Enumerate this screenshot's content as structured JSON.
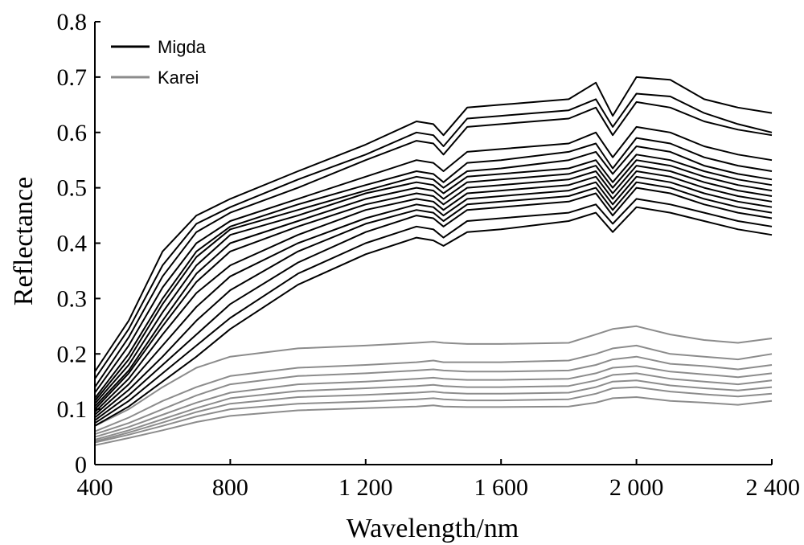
{
  "chart_data": {
    "type": "line",
    "title": "",
    "xlabel": "Wavelength/nm",
    "ylabel": "Reflectance",
    "xlim": [
      400,
      2400
    ],
    "ylim": [
      0,
      0.8
    ],
    "x_ticks": [
      400,
      800,
      1200,
      1600,
      2000,
      2400
    ],
    "x_tick_labels": [
      "400",
      "800",
      "1 200",
      "1 600",
      "2 000",
      "2 400"
    ],
    "y_ticks": [
      0,
      0.1,
      0.2,
      0.3,
      0.4,
      0.5,
      0.6,
      0.7,
      0.8
    ],
    "y_tick_labels": [
      "0",
      "0.1",
      "0.2",
      "0.3",
      "0.4",
      "0.5",
      "0.6",
      "0.7",
      "0.8"
    ],
    "grid": false,
    "legend": {
      "position": "top-left",
      "entries": [
        {
          "name": "Migda",
          "color": "#000000"
        },
        {
          "name": "Karei",
          "color": "#8c8c8c"
        }
      ]
    },
    "x": [
      400,
      500,
      600,
      700,
      800,
      1000,
      1200,
      1350,
      1400,
      1430,
      1500,
      1600,
      1800,
      1880,
      1930,
      2000,
      2100,
      2200,
      2300,
      2400
    ],
    "series": [
      {
        "group": "Migda",
        "values": [
          0.168,
          0.26,
          0.385,
          0.45,
          0.48,
          0.53,
          0.578,
          0.62,
          0.615,
          0.595,
          0.645,
          0.65,
          0.66,
          0.69,
          0.63,
          0.7,
          0.695,
          0.66,
          0.645,
          0.635
        ]
      },
      {
        "group": "Migda",
        "values": [
          0.155,
          0.245,
          0.36,
          0.435,
          0.465,
          0.515,
          0.56,
          0.6,
          0.595,
          0.575,
          0.625,
          0.63,
          0.64,
          0.66,
          0.61,
          0.67,
          0.665,
          0.635,
          0.615,
          0.6
        ]
      },
      {
        "group": "Migda",
        "values": [
          0.14,
          0.23,
          0.34,
          0.42,
          0.455,
          0.5,
          0.55,
          0.585,
          0.58,
          0.56,
          0.61,
          0.615,
          0.625,
          0.645,
          0.595,
          0.655,
          0.645,
          0.62,
          0.605,
          0.595
        ]
      },
      {
        "group": "Migda",
        "values": [
          0.13,
          0.215,
          0.32,
          0.4,
          0.44,
          0.48,
          0.52,
          0.55,
          0.545,
          0.53,
          0.565,
          0.57,
          0.58,
          0.6,
          0.555,
          0.61,
          0.6,
          0.575,
          0.56,
          0.55
        ]
      },
      {
        "group": "Migda",
        "values": [
          0.12,
          0.2,
          0.3,
          0.385,
          0.43,
          0.47,
          0.505,
          0.53,
          0.525,
          0.51,
          0.545,
          0.55,
          0.565,
          0.58,
          0.535,
          0.59,
          0.58,
          0.555,
          0.54,
          0.53
        ]
      },
      {
        "group": "Migda",
        "values": [
          0.115,
          0.19,
          0.29,
          0.375,
          0.425,
          0.46,
          0.495,
          0.52,
          0.515,
          0.5,
          0.53,
          0.535,
          0.55,
          0.565,
          0.525,
          0.575,
          0.565,
          0.54,
          0.525,
          0.515
        ]
      },
      {
        "group": "Migda",
        "values": [
          0.11,
          0.18,
          0.275,
          0.36,
          0.415,
          0.45,
          0.49,
          0.51,
          0.505,
          0.49,
          0.52,
          0.525,
          0.535,
          0.55,
          0.51,
          0.56,
          0.55,
          0.53,
          0.515,
          0.505
        ]
      },
      {
        "group": "Migda",
        "values": [
          0.105,
          0.17,
          0.26,
          0.345,
          0.4,
          0.44,
          0.48,
          0.5,
          0.495,
          0.48,
          0.51,
          0.515,
          0.525,
          0.54,
          0.5,
          0.55,
          0.54,
          0.52,
          0.505,
          0.495
        ]
      },
      {
        "group": "Migda",
        "values": [
          0.1,
          0.165,
          0.25,
          0.33,
          0.385,
          0.43,
          0.47,
          0.49,
          0.485,
          0.47,
          0.5,
          0.505,
          0.515,
          0.53,
          0.49,
          0.54,
          0.53,
          0.51,
          0.495,
          0.485
        ]
      },
      {
        "group": "Migda",
        "values": [
          0.095,
          0.155,
          0.235,
          0.31,
          0.36,
          0.415,
          0.46,
          0.48,
          0.475,
          0.46,
          0.49,
          0.495,
          0.505,
          0.52,
          0.48,
          0.53,
          0.52,
          0.5,
          0.485,
          0.475
        ]
      },
      {
        "group": "Migda",
        "values": [
          0.09,
          0.145,
          0.215,
          0.285,
          0.34,
          0.4,
          0.445,
          0.47,
          0.465,
          0.45,
          0.48,
          0.485,
          0.495,
          0.51,
          0.47,
          0.52,
          0.51,
          0.49,
          0.475,
          0.465
        ]
      },
      {
        "group": "Migda",
        "values": [
          0.085,
          0.135,
          0.195,
          0.26,
          0.315,
          0.385,
          0.435,
          0.46,
          0.455,
          0.44,
          0.47,
          0.475,
          0.485,
          0.5,
          0.46,
          0.51,
          0.5,
          0.48,
          0.465,
          0.455
        ]
      },
      {
        "group": "Migda",
        "values": [
          0.08,
          0.125,
          0.18,
          0.235,
          0.29,
          0.365,
          0.42,
          0.45,
          0.445,
          0.43,
          0.46,
          0.465,
          0.475,
          0.49,
          0.45,
          0.5,
          0.49,
          0.47,
          0.455,
          0.445
        ]
      },
      {
        "group": "Migda",
        "values": [
          0.075,
          0.115,
          0.165,
          0.215,
          0.265,
          0.345,
          0.4,
          0.43,
          0.425,
          0.41,
          0.44,
          0.445,
          0.455,
          0.47,
          0.435,
          0.48,
          0.47,
          0.455,
          0.44,
          0.43
        ]
      },
      {
        "group": "Migda",
        "values": [
          0.07,
          0.105,
          0.15,
          0.195,
          0.245,
          0.325,
          0.38,
          0.41,
          0.405,
          0.395,
          0.42,
          0.425,
          0.44,
          0.455,
          0.42,
          0.465,
          0.455,
          0.44,
          0.425,
          0.415
        ]
      },
      {
        "group": "Karei",
        "values": [
          0.07,
          0.1,
          0.14,
          0.175,
          0.195,
          0.21,
          0.215,
          0.22,
          0.222,
          0.22,
          0.218,
          0.218,
          0.22,
          0.235,
          0.245,
          0.25,
          0.235,
          0.225,
          0.22,
          0.228
        ]
      },
      {
        "group": "Karei",
        "values": [
          0.06,
          0.085,
          0.115,
          0.14,
          0.16,
          0.175,
          0.18,
          0.185,
          0.188,
          0.185,
          0.185,
          0.185,
          0.188,
          0.2,
          0.21,
          0.215,
          0.2,
          0.195,
          0.19,
          0.2
        ]
      },
      {
        "group": "Karei",
        "values": [
          0.055,
          0.075,
          0.1,
          0.125,
          0.145,
          0.16,
          0.165,
          0.17,
          0.172,
          0.17,
          0.168,
          0.168,
          0.17,
          0.18,
          0.19,
          0.195,
          0.182,
          0.178,
          0.172,
          0.18
        ]
      },
      {
        "group": "Karei",
        "values": [
          0.05,
          0.068,
          0.09,
          0.112,
          0.13,
          0.145,
          0.15,
          0.155,
          0.157,
          0.155,
          0.153,
          0.153,
          0.155,
          0.165,
          0.175,
          0.178,
          0.168,
          0.163,
          0.158,
          0.165
        ]
      },
      {
        "group": "Karei",
        "values": [
          0.045,
          0.062,
          0.082,
          0.102,
          0.12,
          0.133,
          0.138,
          0.142,
          0.144,
          0.142,
          0.14,
          0.14,
          0.142,
          0.152,
          0.162,
          0.165,
          0.155,
          0.15,
          0.145,
          0.152
        ]
      },
      {
        "group": "Karei",
        "values": [
          0.042,
          0.058,
          0.076,
          0.095,
          0.11,
          0.122,
          0.126,
          0.13,
          0.132,
          0.13,
          0.128,
          0.128,
          0.13,
          0.14,
          0.15,
          0.152,
          0.143,
          0.138,
          0.134,
          0.14
        ]
      },
      {
        "group": "Karei",
        "values": [
          0.04,
          0.054,
          0.07,
          0.087,
          0.1,
          0.11,
          0.114,
          0.118,
          0.12,
          0.118,
          0.116,
          0.116,
          0.118,
          0.128,
          0.138,
          0.14,
          0.132,
          0.127,
          0.123,
          0.128
        ]
      },
      {
        "group": "Karei",
        "values": [
          0.035,
          0.048,
          0.062,
          0.077,
          0.088,
          0.098,
          0.102,
          0.105,
          0.107,
          0.105,
          0.104,
          0.104,
          0.105,
          0.112,
          0.12,
          0.122,
          0.115,
          0.112,
          0.108,
          0.115
        ]
      }
    ]
  }
}
